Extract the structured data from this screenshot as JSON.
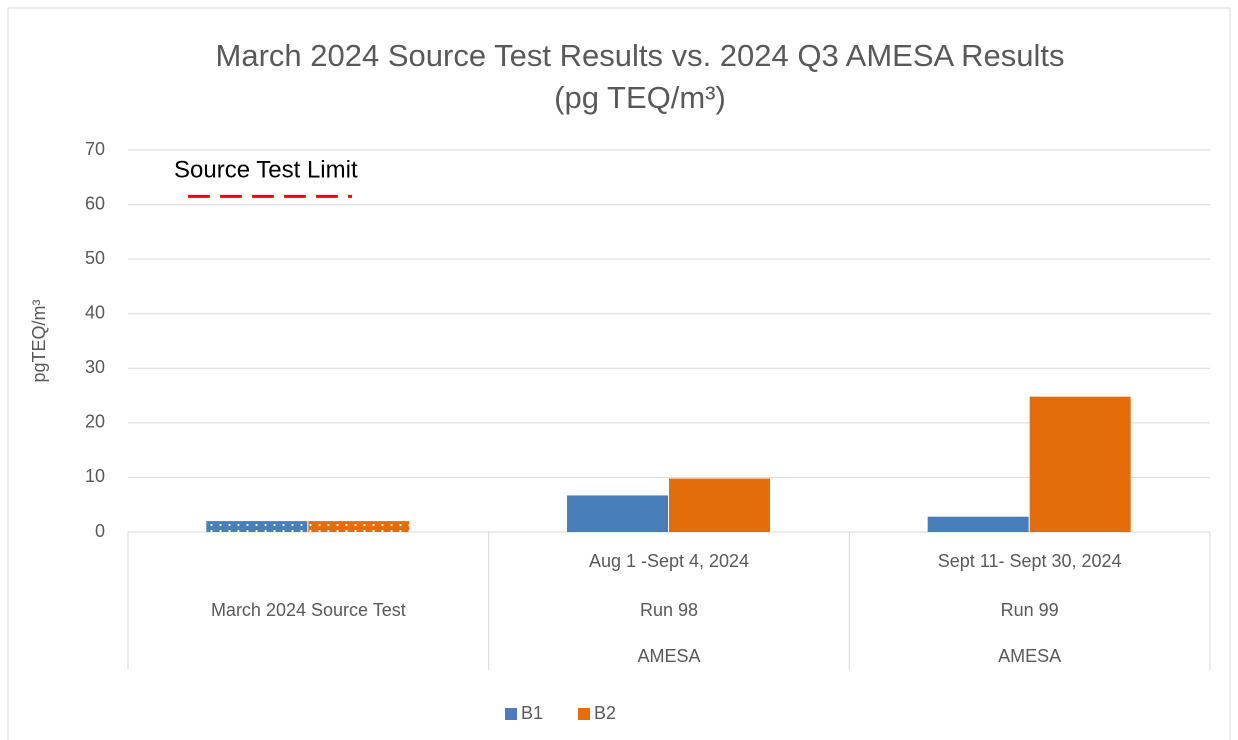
{
  "chart_data": {
    "type": "bar",
    "title": "March 2024 Source Test Results vs. 2024 Q3 AMESA Results",
    "subtitle": "(pg TEQ/m³)",
    "y_label": "pgTEQ/m³",
    "categories": [
      [
        null,
        "March 2024 Source Test",
        null
      ],
      [
        "Aug 1 -Sept 4, 2024",
        "Run 98",
        "AMESA"
      ],
      [
        "Sept 11- Sept 30, 2024",
        "Run 99",
        "AMESA"
      ]
    ],
    "series": [
      {
        "name": "B1",
        "color": "#4a7ebb",
        "values": [
          2,
          6.7,
          2.8
        ],
        "patterned": [
          0
        ]
      },
      {
        "name": "B2",
        "color": "#e46c0a",
        "values": [
          2,
          9.8,
          24.8
        ],
        "patterned": [
          0
        ]
      }
    ],
    "annotations": [
      {
        "text": "Source Test Limit",
        "value": 61.5,
        "color": "#ff0000",
        "style": "dashed"
      }
    ],
    "ylim": [
      0,
      70
    ],
    "yticks": [
      0,
      10,
      20,
      30,
      40,
      50,
      60,
      70
    ],
    "grid": true,
    "legend": "bottom"
  }
}
